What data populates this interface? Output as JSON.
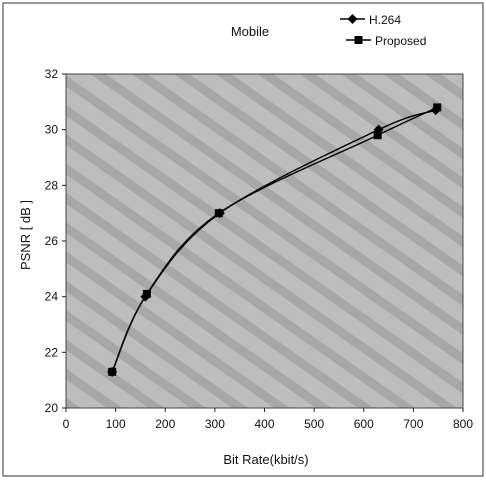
{
  "chart_data": {
    "type": "line",
    "title": "Mobile",
    "xlabel": "Bit Rate(kbit/s)",
    "ylabel": "PSNR [ dB ]",
    "xlim": [
      0,
      800
    ],
    "ylim": [
      20,
      32
    ],
    "xticks": [
      0,
      100,
      200,
      300,
      400,
      500,
      600,
      700,
      800
    ],
    "yticks": [
      20,
      22,
      24,
      26,
      28,
      30,
      32
    ],
    "grid": false,
    "legend_position": "top-right",
    "plot_background": "#b9b9b9",
    "series": [
      {
        "name": "H.264",
        "marker": "diamond",
        "color": "#000000",
        "x": [
          93,
          160,
          310,
          630,
          745
        ],
        "y": [
          21.3,
          24.0,
          27.0,
          30.0,
          30.7
        ]
      },
      {
        "name": "Proposed",
        "marker": "square",
        "color": "#000000",
        "x": [
          93,
          163,
          308,
          628,
          748
        ],
        "y": [
          21.3,
          24.1,
          27.0,
          29.8,
          30.8
        ]
      }
    ]
  }
}
